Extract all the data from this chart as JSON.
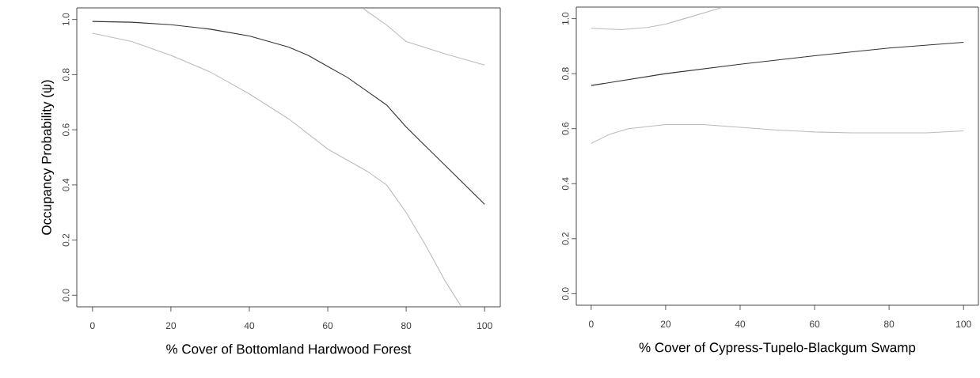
{
  "chart_data": [
    {
      "type": "line",
      "xlabel": "% Cover of Bottomland Hardwood Forest",
      "ylabel": "Occupancy Probability (ψ)",
      "xlim": [
        -4,
        104
      ],
      "ylim": [
        -0.042,
        1.042
      ],
      "xticks": [
        0,
        20,
        40,
        60,
        80,
        100
      ],
      "yticks": [
        {
          "value": 0,
          "label": "0.0"
        },
        {
          "value": 0.2,
          "label": "0.2"
        },
        {
          "value": 0.4,
          "label": "0.4"
        },
        {
          "value": 0.6,
          "label": "0.6"
        },
        {
          "value": 0.8,
          "label": "0.8"
        },
        {
          "value": 1,
          "label": "1.0"
        }
      ],
      "series": [
        {
          "color": "#bbbbbb",
          "x": [
            0,
            10,
            20,
            30,
            40,
            50,
            60,
            70,
            75,
            80,
            85,
            90,
            94
          ],
          "values": [
            0.95,
            0.92,
            0.87,
            0.81,
            0.73,
            0.64,
            0.53,
            0.45,
            0.4,
            0.3,
            0.18,
            0.05,
            -0.04
          ]
        },
        {
          "color": "#bbbbbb",
          "x": [
            69,
            75,
            80,
            90,
            100
          ],
          "values": [
            1.04,
            0.98,
            0.92,
            0.875,
            0.835
          ]
        },
        {
          "color": "#333333",
          "x": [
            0,
            10,
            20,
            30,
            40,
            50,
            55,
            60,
            65,
            70,
            75,
            80,
            85,
            90,
            95,
            100
          ],
          "values": [
            0.993,
            0.99,
            0.981,
            0.965,
            0.94,
            0.9,
            0.87,
            0.83,
            0.79,
            0.74,
            0.69,
            0.61,
            0.54,
            0.47,
            0.4,
            0.33
          ]
        }
      ]
    },
    {
      "type": "line",
      "xlabel": "% Cover of Cypress-Tupelo-Blackgum Swamp",
      "xlim": [
        -4,
        104
      ],
      "ylim": [
        -0.042,
        1.042
      ],
      "xticks": [
        0,
        20,
        40,
        60,
        80,
        100
      ],
      "yticks": [
        {
          "value": 0,
          "label": "0.0"
        },
        {
          "value": 0.2,
          "label": "0.2"
        },
        {
          "value": 0.4,
          "label": "0.4"
        },
        {
          "value": 0.6,
          "label": "0.6"
        },
        {
          "value": 0.8,
          "label": "0.8"
        },
        {
          "value": 1,
          "label": "1.0"
        }
      ],
      "series": [
        {
          "color": "#bbbbbb",
          "x": [
            0,
            5,
            10,
            20,
            30,
            40,
            50,
            60,
            70,
            80,
            90,
            100
          ],
          "values": [
            0.547,
            0.58,
            0.6,
            0.615,
            0.615,
            0.605,
            0.595,
            0.588,
            0.585,
            0.585,
            0.585,
            0.592
          ]
        },
        {
          "color": "#bbbbbb",
          "x": [
            0,
            8,
            15,
            20,
            25,
            30,
            35
          ],
          "values": [
            0.965,
            0.96,
            0.968,
            0.98,
            1.0,
            1.02,
            1.04
          ]
        },
        {
          "color": "#333333",
          "x": [
            0,
            20,
            40,
            60,
            80,
            100
          ],
          "values": [
            0.757,
            0.8,
            0.834,
            0.865,
            0.893,
            0.914
          ]
        }
      ]
    }
  ]
}
